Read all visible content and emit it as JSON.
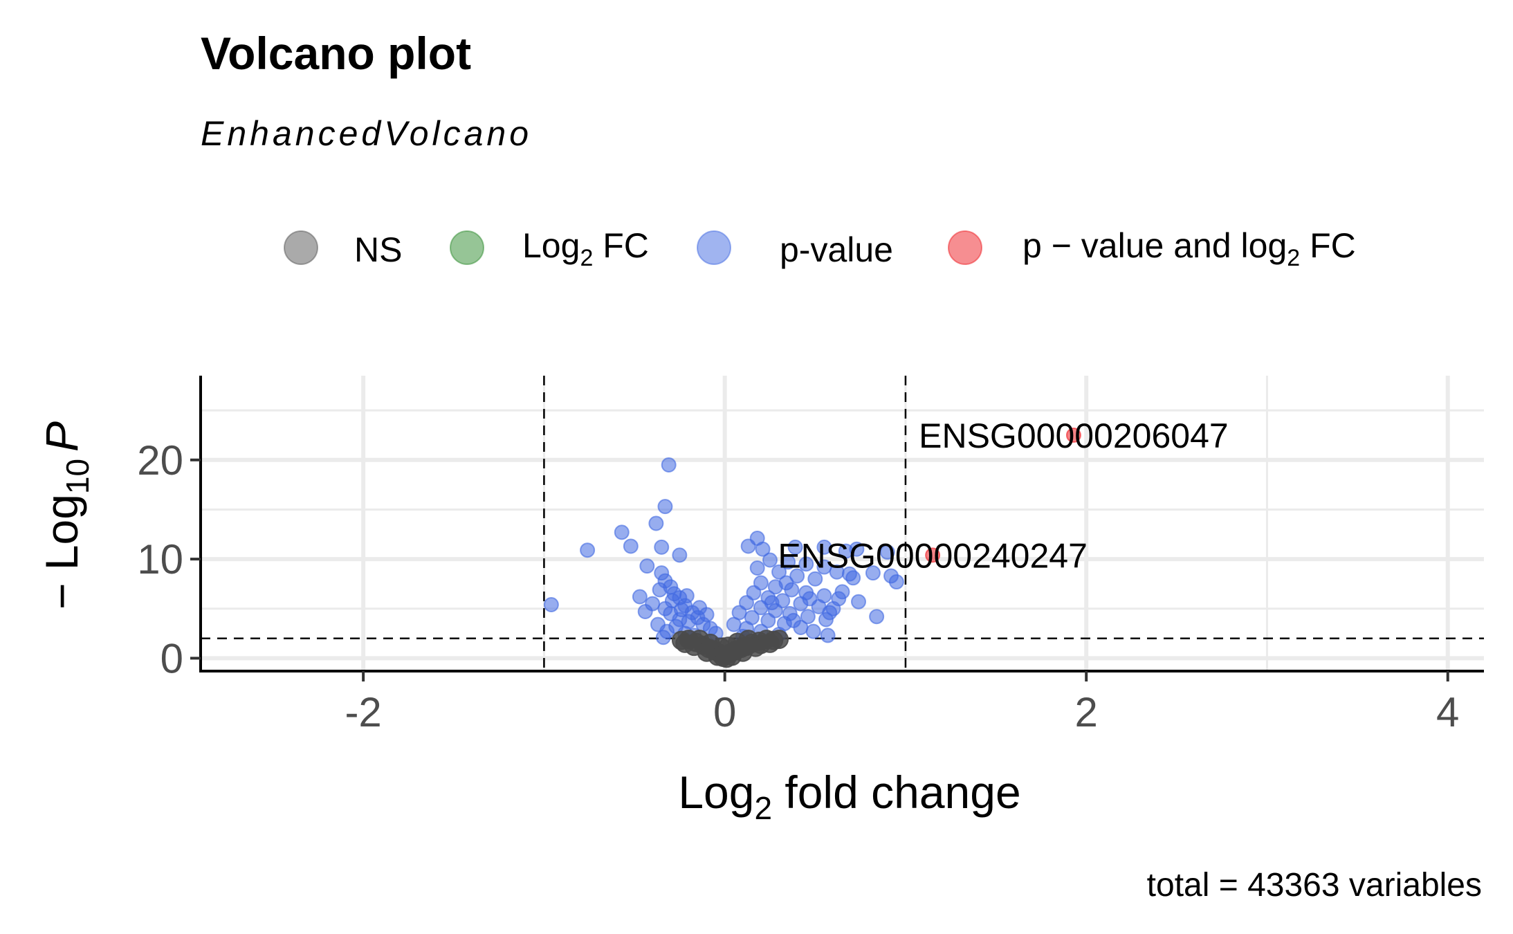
{
  "chart_data": {
    "type": "scatter",
    "title": "Volcano plot",
    "subtitle": "EnhancedVolcano",
    "caption": "total = 43363 variables",
    "xlabel": {
      "main": "Log",
      "sub": "2",
      "rest": " fold change"
    },
    "ylabel": {
      "pre": "− Log",
      "sub": "10",
      "italic": "P"
    },
    "xlim": [
      -2.9,
      4.2
    ],
    "ylim": [
      -1.3,
      28.5
    ],
    "x_ticks": [
      -2,
      0,
      2,
      4
    ],
    "x_tick_labels": [
      "-2",
      "0",
      "2",
      "4"
    ],
    "y_ticks": [
      0,
      10,
      20
    ],
    "y_tick_labels": [
      "0",
      "10",
      "20"
    ],
    "grid": true,
    "legend_position": "top",
    "legend": [
      {
        "key": "NS",
        "label": "NS",
        "color": "#555555"
      },
      {
        "key": "FC",
        "label": "Log",
        "sub": "2",
        "rest": " FC",
        "color": "#2e8b2e"
      },
      {
        "key": "P",
        "label": "p-value",
        "color": "#4169e1"
      },
      {
        "key": "FC_P",
        "label": "p − value and log",
        "sub": "2",
        "rest": " FC",
        "color": "#ee1d23"
      }
    ],
    "colors": {
      "NS": "#4a4a4a",
      "P": "#4169e1",
      "FC_P": "#ee1d23"
    },
    "cutoffs": {
      "log2fc": [
        -1,
        1
      ],
      "neg_log10_p": 2
    },
    "labeled_points": [
      {
        "label": "ENSG00000206047",
        "x": 1.93,
        "y": 22.5
      },
      {
        "label": "ENSG00000240247",
        "x": 1.15,
        "y": 10.4
      }
    ],
    "series": [
      {
        "name": "p-value",
        "points": [
          [
            -0.31,
            19.5
          ],
          [
            -0.33,
            15.3
          ],
          [
            -0.38,
            13.6
          ],
          [
            -0.57,
            12.7
          ],
          [
            -0.52,
            11.3
          ],
          [
            -0.35,
            11.2
          ],
          [
            -0.76,
            10.9
          ],
          [
            -0.25,
            10.4
          ],
          [
            -0.96,
            5.4
          ],
          [
            -0.43,
            9.3
          ],
          [
            -0.35,
            8.6
          ],
          [
            -0.33,
            7.8
          ],
          [
            -0.3,
            7.2
          ],
          [
            -0.36,
            6.9
          ],
          [
            -0.28,
            6.5
          ],
          [
            -0.25,
            6.1
          ],
          [
            -0.47,
            6.2
          ],
          [
            -0.4,
            5.5
          ],
          [
            -0.33,
            5.0
          ],
          [
            -0.22,
            5.3
          ],
          [
            -0.18,
            4.6
          ],
          [
            -0.3,
            4.5
          ],
          [
            -0.15,
            4.1
          ],
          [
            -0.44,
            4.7
          ],
          [
            -0.2,
            3.7
          ],
          [
            -0.12,
            3.4
          ],
          [
            -0.27,
            3.2
          ],
          [
            -0.08,
            3.0
          ],
          [
            -0.32,
            2.7
          ],
          [
            -0.22,
            2.5
          ],
          [
            -0.34,
            2.1
          ],
          [
            -0.17,
            2.3
          ],
          [
            -0.05,
            2.5
          ],
          [
            -0.25,
            3.9
          ],
          [
            -0.29,
            5.8
          ],
          [
            -0.37,
            3.4
          ],
          [
            -0.21,
            6.3
          ],
          [
            -0.14,
            5.1
          ],
          [
            -0.1,
            4.4
          ],
          [
            -0.24,
            4.9
          ],
          [
            0.18,
            12.1
          ],
          [
            0.13,
            11.3
          ],
          [
            0.21,
            11.0
          ],
          [
            0.39,
            11.2
          ],
          [
            0.55,
            11.2
          ],
          [
            0.73,
            11.0
          ],
          [
            0.67,
            10.8
          ],
          [
            0.9,
            10.7
          ],
          [
            0.25,
            9.9
          ],
          [
            0.35,
            9.7
          ],
          [
            0.45,
            9.5
          ],
          [
            0.55,
            9.2
          ],
          [
            0.62,
            8.7
          ],
          [
            0.69,
            8.5
          ],
          [
            0.82,
            8.6
          ],
          [
            0.95,
            7.7
          ],
          [
            0.92,
            8.3
          ],
          [
            0.3,
            8.7
          ],
          [
            0.4,
            8.3
          ],
          [
            0.5,
            8.0
          ],
          [
            0.2,
            7.6
          ],
          [
            0.28,
            7.2
          ],
          [
            0.37,
            6.9
          ],
          [
            0.45,
            6.6
          ],
          [
            0.55,
            6.3
          ],
          [
            0.63,
            6.0
          ],
          [
            0.74,
            5.7
          ],
          [
            0.16,
            6.6
          ],
          [
            0.24,
            6.1
          ],
          [
            0.32,
            5.8
          ],
          [
            0.42,
            5.5
          ],
          [
            0.52,
            5.2
          ],
          [
            0.6,
            5.0
          ],
          [
            0.12,
            5.6
          ],
          [
            0.2,
            5.1
          ],
          [
            0.28,
            4.8
          ],
          [
            0.36,
            4.5
          ],
          [
            0.46,
            4.2
          ],
          [
            0.56,
            3.9
          ],
          [
            0.08,
            4.6
          ],
          [
            0.15,
            4.1
          ],
          [
            0.24,
            3.8
          ],
          [
            0.33,
            3.5
          ],
          [
            0.42,
            3.1
          ],
          [
            0.05,
            3.4
          ],
          [
            0.12,
            3.0
          ],
          [
            0.2,
            2.7
          ],
          [
            0.3,
            2.4
          ],
          [
            0.49,
            2.7
          ],
          [
            0.57,
            2.3
          ],
          [
            0.84,
            4.2
          ],
          [
            0.1,
            2.2
          ],
          [
            0.38,
            3.8
          ],
          [
            0.26,
            5.6
          ],
          [
            0.47,
            6.0
          ],
          [
            0.34,
            7.6
          ],
          [
            0.58,
            4.6
          ],
          [
            0.65,
            6.7
          ],
          [
            0.71,
            8.1
          ],
          [
            0.18,
            9.1
          ]
        ]
      },
      {
        "name": "NS",
        "points": [
          [
            -0.2,
            1.9
          ],
          [
            -0.16,
            1.6
          ],
          [
            -0.12,
            1.3
          ],
          [
            -0.09,
            1.0
          ],
          [
            -0.06,
            0.8
          ],
          [
            -0.03,
            0.5
          ],
          [
            0.0,
            0.3
          ],
          [
            0.03,
            0.5
          ],
          [
            0.06,
            0.8
          ],
          [
            0.09,
            1.0
          ],
          [
            0.12,
            1.2
          ],
          [
            0.15,
            1.5
          ],
          [
            0.19,
            1.7
          ],
          [
            0.23,
            1.9
          ],
          [
            0.27,
            1.8
          ],
          [
            -0.24,
            1.8
          ],
          [
            -0.14,
            1.9
          ],
          [
            -0.08,
            1.5
          ],
          [
            -0.02,
            1.1
          ],
          [
            0.02,
            1.2
          ],
          [
            0.07,
            1.6
          ],
          [
            0.13,
            1.9
          ],
          [
            0.2,
            1.4
          ],
          [
            0.3,
            1.9
          ],
          [
            -0.01,
            0.1
          ],
          [
            0.01,
            0.0
          ],
          [
            -0.04,
            0.2
          ],
          [
            0.04,
            0.2
          ],
          [
            0.1,
            0.6
          ],
          [
            -0.1,
            0.6
          ],
          [
            0.17,
            1.1
          ],
          [
            -0.17,
            1.2
          ],
          [
            0.25,
            1.5
          ],
          [
            -0.22,
            1.5
          ]
        ]
      },
      {
        "name": "p − value and log2 FC",
        "points": [
          [
            1.93,
            22.5
          ],
          [
            1.15,
            10.4
          ]
        ]
      }
    ]
  }
}
